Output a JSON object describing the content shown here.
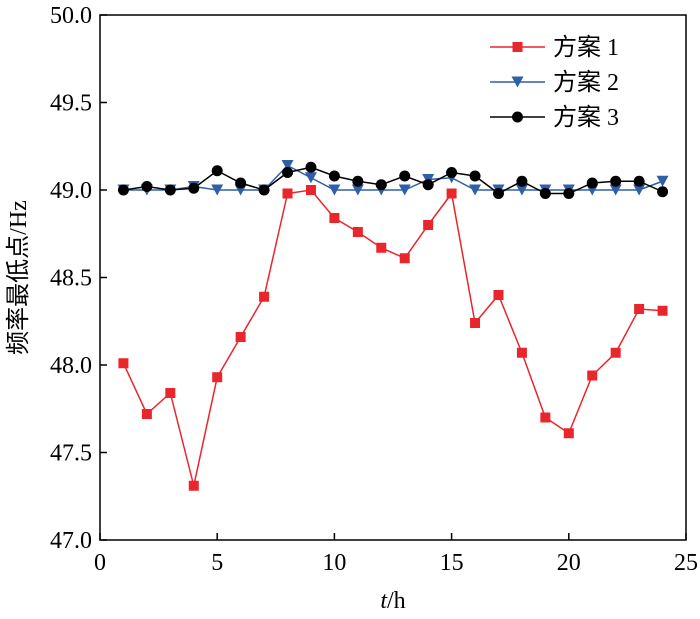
{
  "chart_data": {
    "type": "line",
    "xlabel_italic": "t",
    "xlabel_rest": "/h",
    "ylabel": "频率最低点/Hz",
    "xlim": [
      0,
      25
    ],
    "ylim": [
      47.0,
      50.0
    ],
    "xticks": [
      "0",
      "5",
      "10",
      "15",
      "20",
      "25"
    ],
    "yticks": [
      "47.0",
      "47.5",
      "48.0",
      "48.5",
      "49.0",
      "49.5",
      "50.0"
    ],
    "grid": false,
    "legend_position": "top-right",
    "x": [
      1,
      2,
      3,
      4,
      5,
      6,
      7,
      8,
      9,
      10,
      11,
      12,
      13,
      14,
      15,
      16,
      17,
      18,
      19,
      20,
      21,
      22,
      23,
      24
    ],
    "series": [
      {
        "name": "方案 1",
        "color": "#e8262b",
        "marker": "square",
        "values": [
          48.01,
          47.72,
          47.84,
          47.31,
          47.93,
          48.16,
          48.39,
          48.98,
          49.0,
          48.84,
          48.76,
          48.67,
          48.61,
          48.8,
          48.98,
          48.24,
          48.4,
          48.07,
          47.7,
          47.61,
          47.94,
          48.07,
          48.32,
          48.31
        ]
      },
      {
        "name": "方案 2",
        "color": "#2f5fa8",
        "marker": "triangle-down",
        "values": [
          49.0,
          49.0,
          49.0,
          49.02,
          49.0,
          49.0,
          49.0,
          49.14,
          49.07,
          49.0,
          49.0,
          49.0,
          49.0,
          49.06,
          49.07,
          49.0,
          49.0,
          49.0,
          49.0,
          49.0,
          49.0,
          49.0,
          49.0,
          49.05
        ]
      },
      {
        "name": "方案 3",
        "color": "#000000",
        "marker": "circle",
        "values": [
          49.0,
          49.02,
          49.0,
          49.01,
          49.11,
          49.04,
          49.0,
          49.1,
          49.13,
          49.08,
          49.05,
          49.03,
          49.08,
          49.03,
          49.1,
          49.08,
          48.98,
          49.05,
          48.98,
          48.98,
          49.04,
          49.05,
          49.05,
          48.99
        ]
      }
    ]
  }
}
